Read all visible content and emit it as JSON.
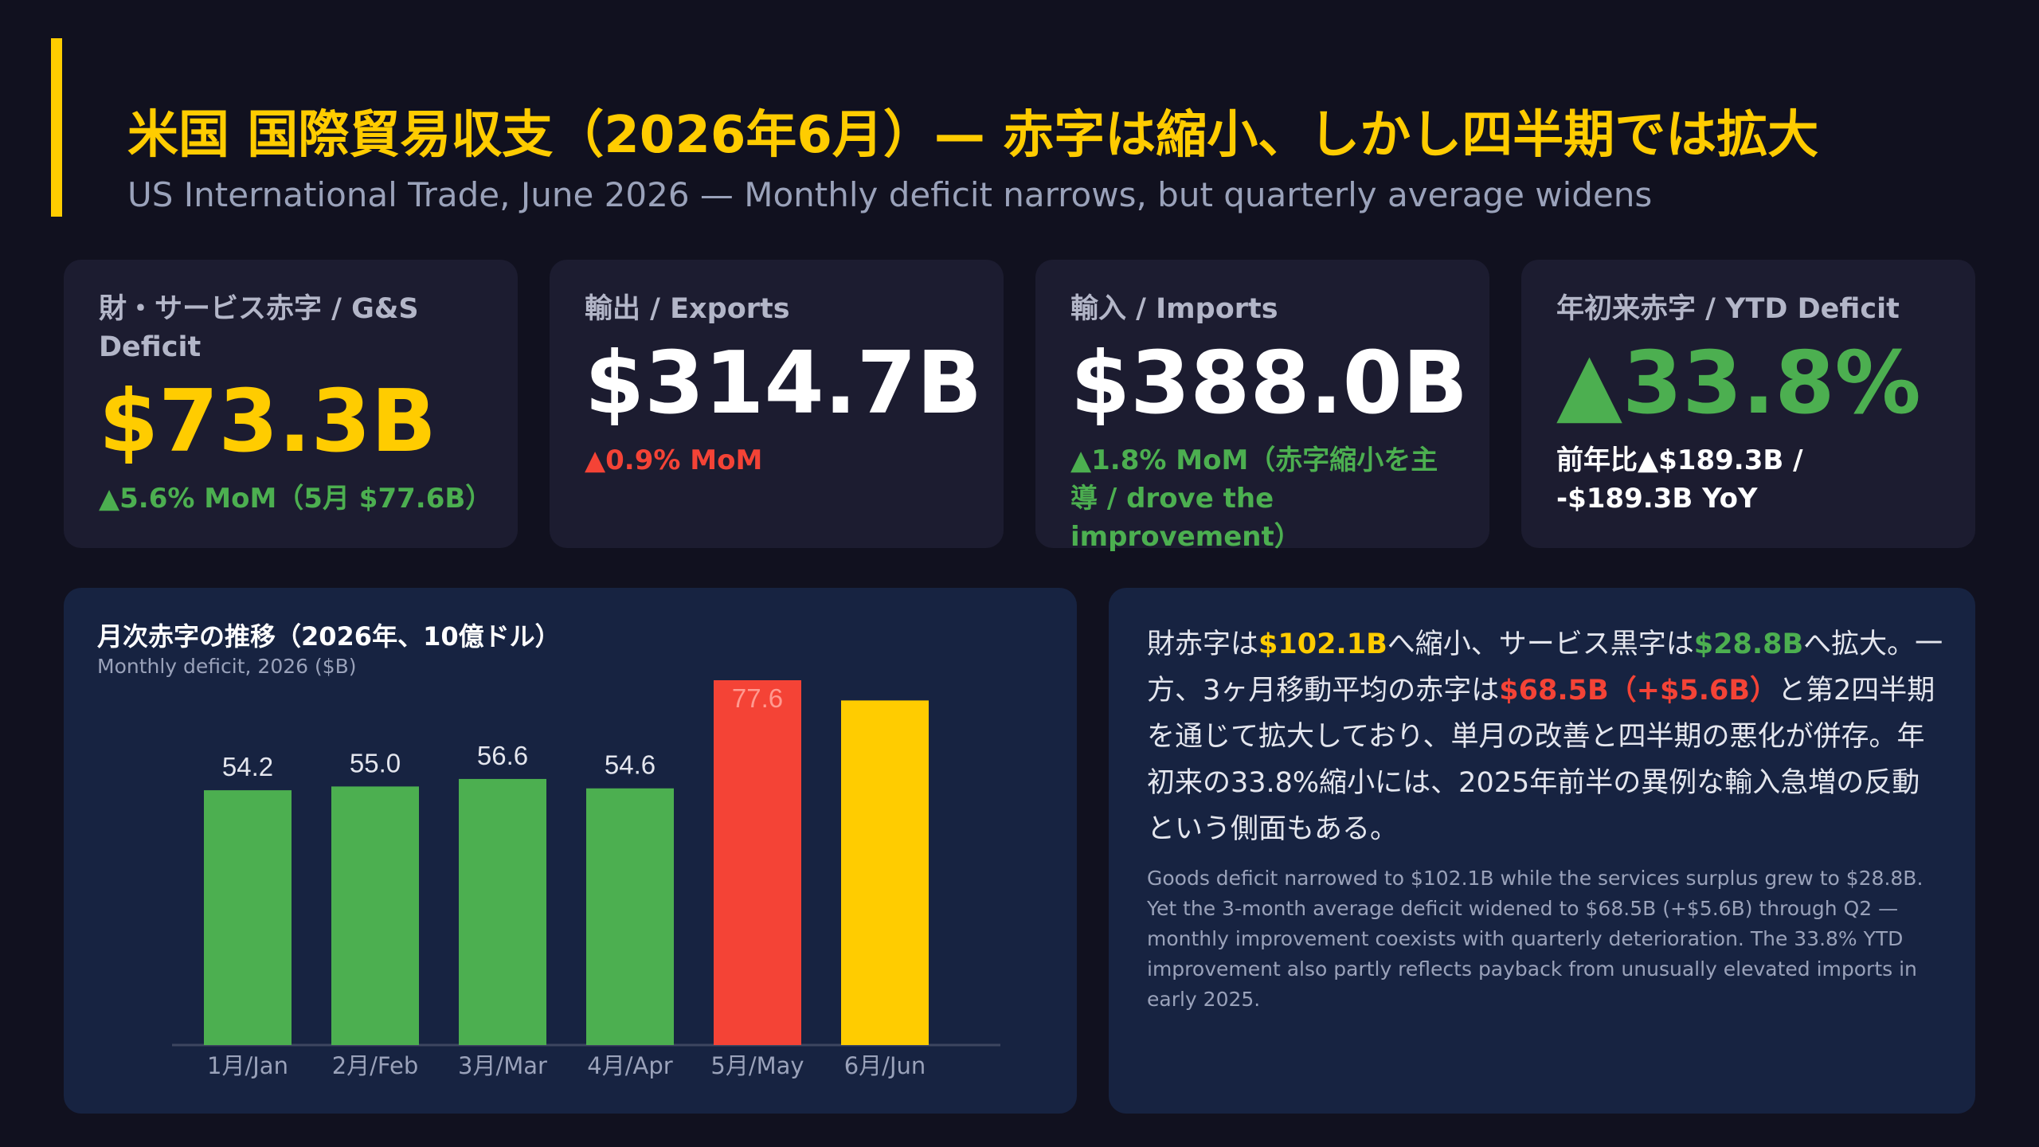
{
  "header": {
    "title_jp": "米国 国際貿易収支（2026年6月）— 赤字は縮小、しかし四半期では拡大",
    "title_en": "US International Trade, June 2026 — Monthly deficit narrows, but quarterly average widens"
  },
  "kpis": [
    {
      "label": "財・サービス赤字 / G&S Deficit",
      "value": "$73.3B",
      "sub": "▲5.6% MoM（5月 $77.6B）",
      "value_color": "#ffcc00",
      "sub_color": "#4caf50"
    },
    {
      "label": "輸出 / Exports",
      "value": "$314.7B",
      "sub": "▲0.9% MoM",
      "value_color": "#ffffff",
      "sub_color": "#f44336"
    },
    {
      "label": "輸入 / Imports",
      "value": "$388.0B",
      "sub": "▲1.8% MoM（赤字縮小を主導 / drove the improvement）",
      "value_color": "#ffffff",
      "sub_color": "#4caf50"
    },
    {
      "label": "年初来赤字 / YTD Deficit",
      "value": "▲33.8%",
      "sub": "前年比▲$189.3B / -$189.3B YoY",
      "value_color": "#4caf50",
      "sub_color": "#ffffff"
    }
  ],
  "chart_data": {
    "type": "bar",
    "title": "月次赤字の推移（2026年、10億ドル）",
    "subtitle": "Monthly deficit, 2026 ($B)",
    "categories": [
      "1月/Jan",
      "2月/Feb",
      "3月/Mar",
      "4月/Apr",
      "5月/May",
      "6月/Jun"
    ],
    "values": [
      54.2,
      55.0,
      56.6,
      54.6,
      77.6,
      73.3
    ],
    "data_labels": [
      "54.2",
      "55.0",
      "56.6",
      "54.6",
      "77.6",
      ""
    ],
    "colors": [
      "#4caf50",
      "#4caf50",
      "#4caf50",
      "#4caf50",
      "#f44336",
      "#ffcc00"
    ],
    "ylim": [
      0,
      77.6
    ],
    "grid": false,
    "legend": "none"
  },
  "commentary": {
    "jp_parts": [
      {
        "text": "財赤字は",
        "style": ""
      },
      {
        "text": "$102.1B",
        "style": "hl-yellow"
      },
      {
        "text": "へ縮小、サービス黒字は",
        "style": ""
      },
      {
        "text": "$28.8B",
        "style": "hl-green"
      },
      {
        "text": "へ拡大。一方、3ヶ月移動平均の赤字は",
        "style": ""
      },
      {
        "text": "$68.5B（+$5.6B）",
        "style": "hl-red"
      },
      {
        "text": "と第2四半期を通じて拡大しており、単月の改善と四半期の悪化が併存。年初来の33.8%縮小には、2025年前半の異例な輸入急増の反動という側面もある。",
        "style": ""
      }
    ],
    "en": "Goods deficit narrowed to $102.1B while the services surplus grew to $28.8B. Yet the 3-month average deficit widened to $68.5B (+$5.6B) through Q2 — monthly improvement coexists with quarterly deterioration. The 33.8% YTD improvement also partly reflects payback from unusually elevated imports in early 2025."
  }
}
